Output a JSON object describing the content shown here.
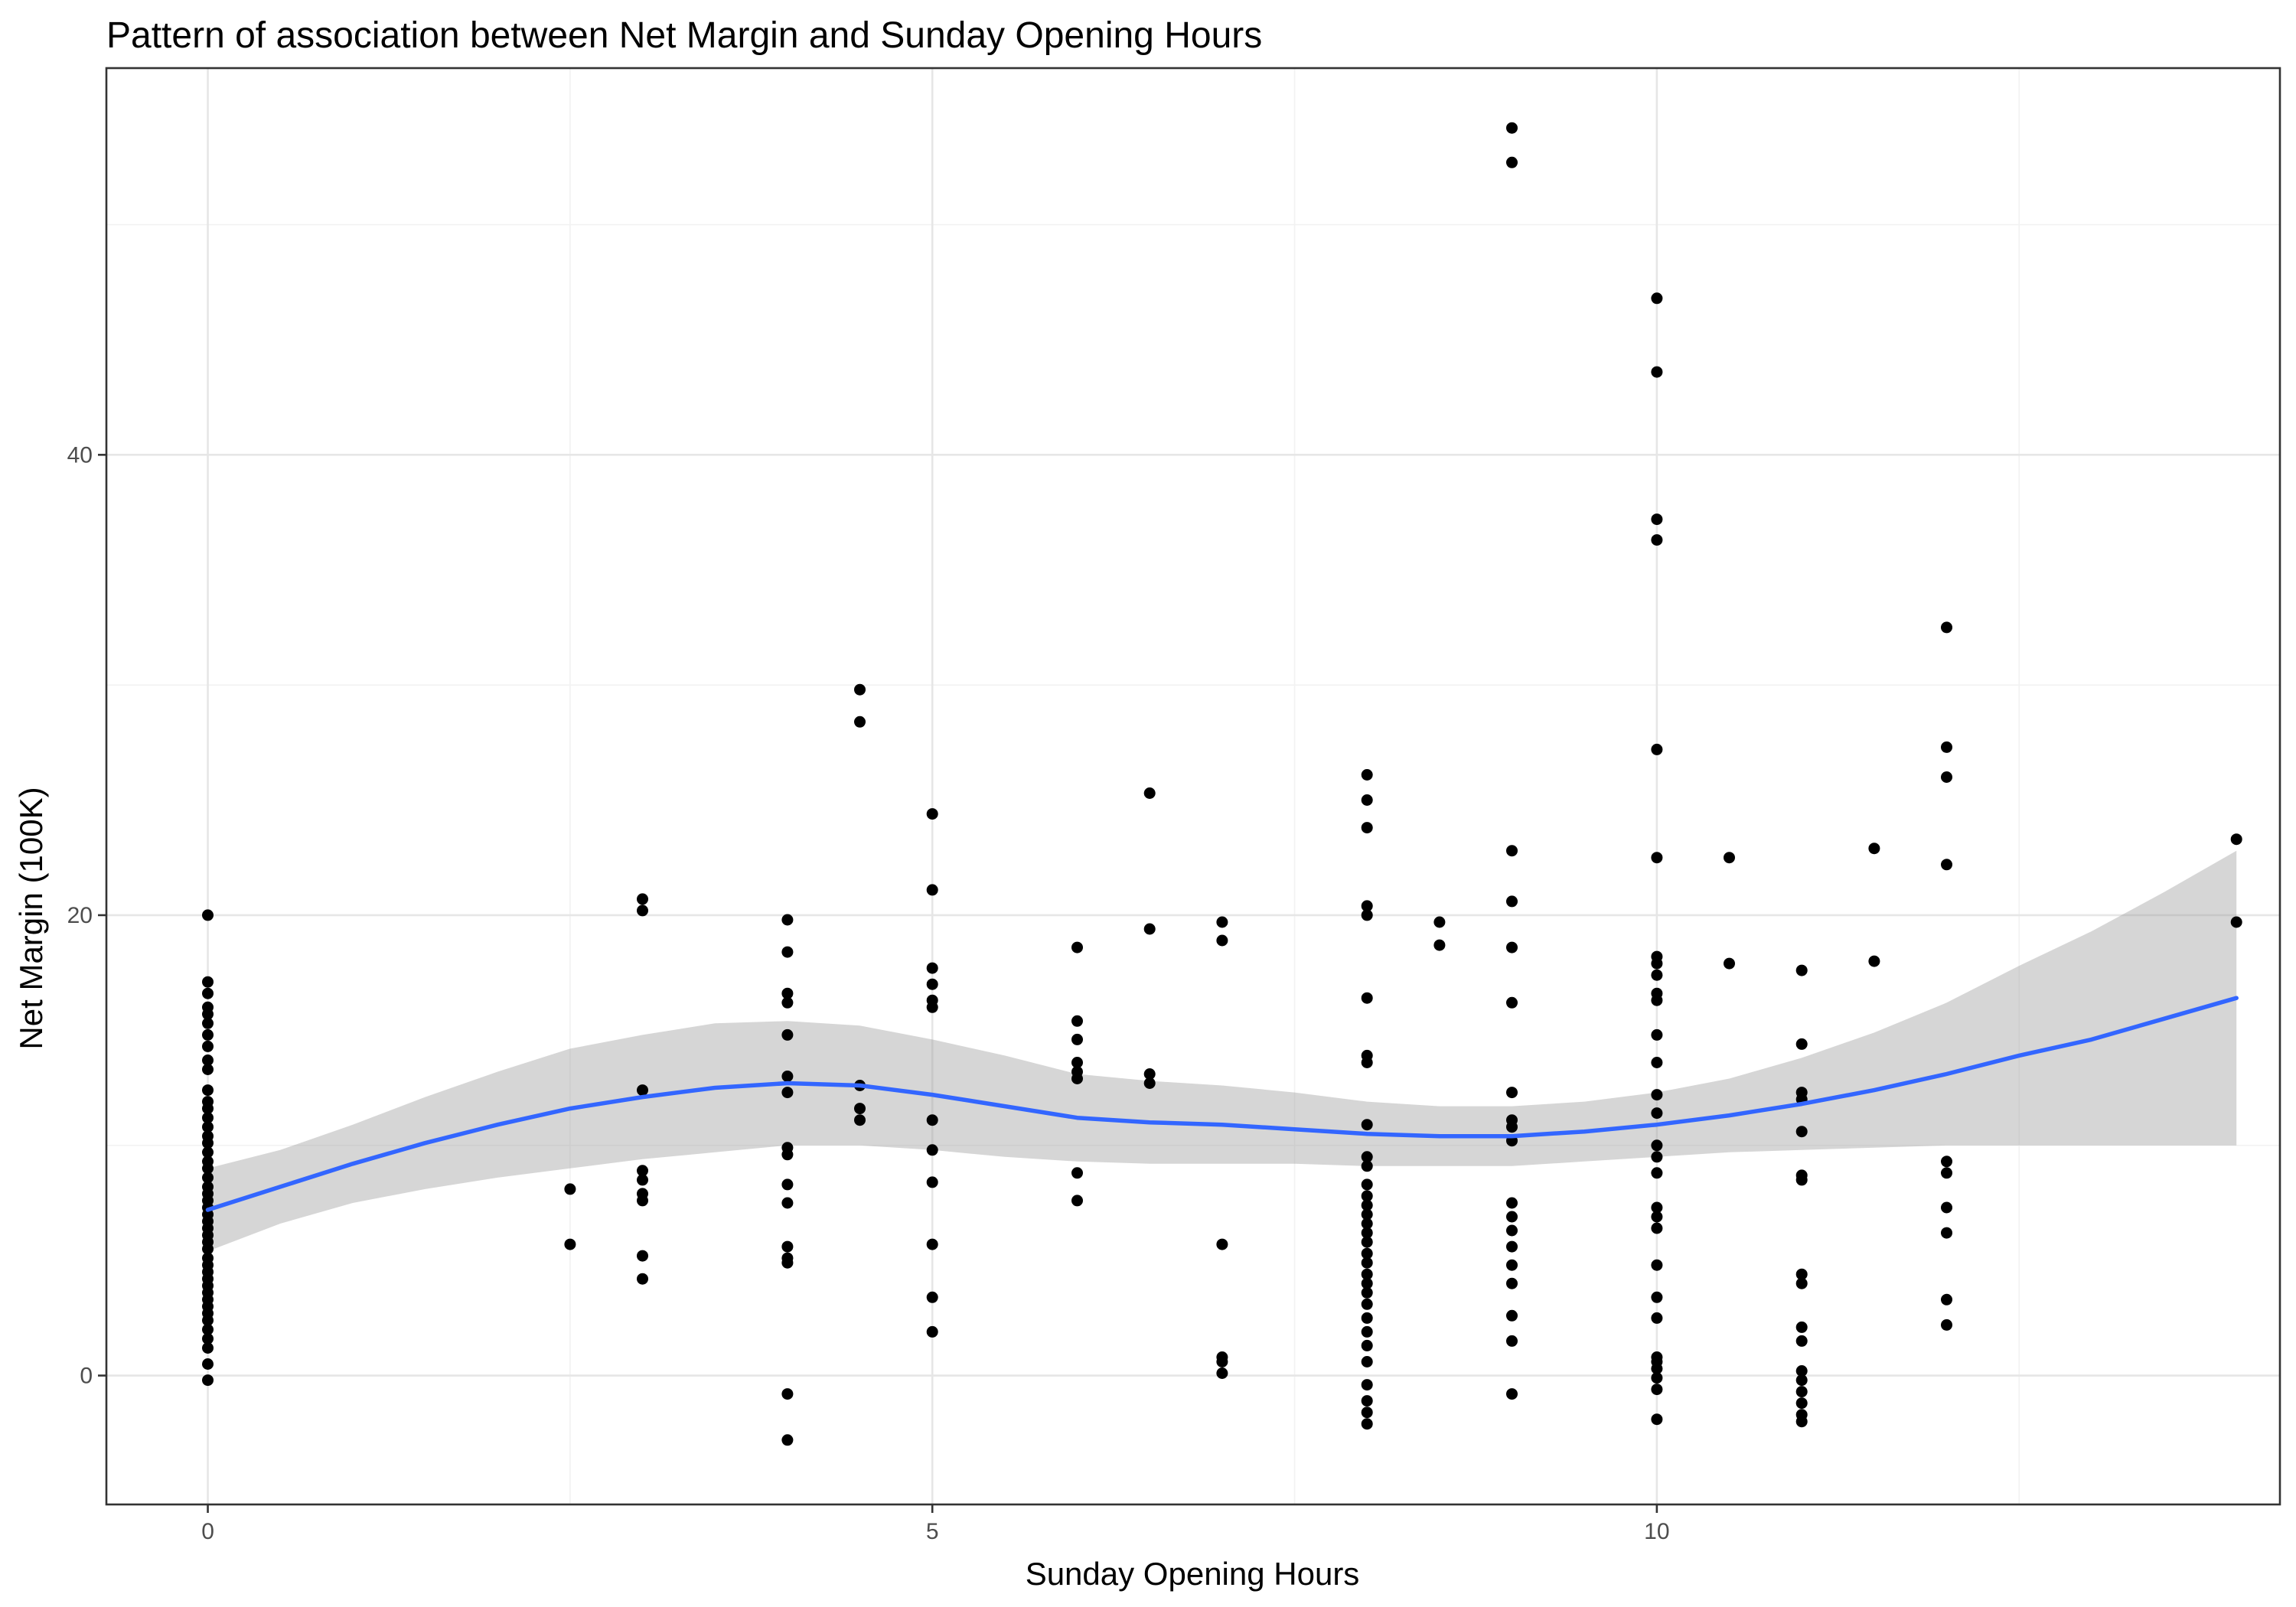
{
  "chart_data": {
    "type": "scatter",
    "title": "Pattern of association between Net Margin and Sunday Opening Hours",
    "xlabel": "Sunday Opening Hours",
    "ylabel": "Net Margin (100K)",
    "xlim": [
      -0.7,
      14.3
    ],
    "ylim": [
      -5.6,
      56.8
    ],
    "x_ticks": [
      0,
      5,
      10
    ],
    "y_ticks": [
      0,
      20,
      40
    ],
    "x_minor_ticks": [
      2.5,
      7.5,
      12.5
    ],
    "y_minor_ticks": [
      10,
      30,
      50
    ],
    "grid": true,
    "colors": {
      "points": "#000000",
      "smooth_line": "#3366ff",
      "confidence_band": "#999999"
    },
    "points": [
      [
        0,
        20.0
      ],
      [
        0,
        17.1
      ],
      [
        0,
        16.6
      ],
      [
        0,
        16.0
      ],
      [
        0,
        15.7
      ],
      [
        0,
        15.3
      ],
      [
        0,
        14.8
      ],
      [
        0,
        14.3
      ],
      [
        0,
        13.7
      ],
      [
        0,
        13.3
      ],
      [
        0,
        12.4
      ],
      [
        0,
        11.9
      ],
      [
        0,
        11.6
      ],
      [
        0,
        11.2
      ],
      [
        0,
        10.8
      ],
      [
        0,
        10.4
      ],
      [
        0,
        10.1
      ],
      [
        0,
        9.7
      ],
      [
        0,
        9.3
      ],
      [
        0,
        9.0
      ],
      [
        0,
        8.6
      ],
      [
        0,
        8.2
      ],
      [
        0,
        7.9
      ],
      [
        0,
        7.6
      ],
      [
        0,
        7.3
      ],
      [
        0,
        7.0
      ],
      [
        0,
        6.7
      ],
      [
        0,
        6.4
      ],
      [
        0,
        6.1
      ],
      [
        0,
        5.8
      ],
      [
        0,
        5.5
      ],
      [
        0,
        5.1
      ],
      [
        0,
        4.8
      ],
      [
        0,
        4.5
      ],
      [
        0,
        4.2
      ],
      [
        0,
        3.9
      ],
      [
        0,
        3.6
      ],
      [
        0,
        3.3
      ],
      [
        0,
        3.0
      ],
      [
        0,
        2.7
      ],
      [
        0,
        2.4
      ],
      [
        0,
        2.0
      ],
      [
        0,
        1.6
      ],
      [
        0,
        1.2
      ],
      [
        0,
        0.5
      ],
      [
        0,
        -0.2
      ],
      [
        2.5,
        8.1
      ],
      [
        2.5,
        5.7
      ],
      [
        3,
        20.7
      ],
      [
        3,
        20.2
      ],
      [
        3,
        12.4
      ],
      [
        3,
        8.9
      ],
      [
        3,
        8.5
      ],
      [
        3,
        7.9
      ],
      [
        3,
        7.6
      ],
      [
        3,
        5.2
      ],
      [
        3,
        4.2
      ],
      [
        4,
        19.8
      ],
      [
        4,
        18.4
      ],
      [
        4,
        16.6
      ],
      [
        4,
        16.2
      ],
      [
        4,
        14.8
      ],
      [
        4,
        13.0
      ],
      [
        4,
        12.3
      ],
      [
        4,
        9.9
      ],
      [
        4,
        9.6
      ],
      [
        4,
        8.3
      ],
      [
        4,
        7.5
      ],
      [
        4,
        5.6
      ],
      [
        4,
        5.1
      ],
      [
        4,
        4.9
      ],
      [
        4,
        -0.8
      ],
      [
        4,
        -2.8
      ],
      [
        4.5,
        29.8
      ],
      [
        4.5,
        28.4
      ],
      [
        4.5,
        12.6
      ],
      [
        4.5,
        11.6
      ],
      [
        4.5,
        11.1
      ],
      [
        5,
        24.4
      ],
      [
        5,
        21.1
      ],
      [
        5,
        17.7
      ],
      [
        5,
        17.0
      ],
      [
        5,
        16.3
      ],
      [
        5,
        16.0
      ],
      [
        5,
        11.1
      ],
      [
        5,
        9.8
      ],
      [
        5,
        8.4
      ],
      [
        5,
        5.7
      ],
      [
        5,
        3.4
      ],
      [
        5,
        1.9
      ],
      [
        6,
        18.6
      ],
      [
        6,
        15.4
      ],
      [
        6,
        14.6
      ],
      [
        6,
        13.6
      ],
      [
        6,
        13.2
      ],
      [
        6,
        12.9
      ],
      [
        6,
        8.8
      ],
      [
        6,
        7.6
      ],
      [
        6.5,
        25.3
      ],
      [
        6.5,
        19.4
      ],
      [
        6.5,
        13.1
      ],
      [
        6.5,
        12.7
      ],
      [
        7,
        19.7
      ],
      [
        7,
        18.9
      ],
      [
        7,
        5.7
      ],
      [
        7,
        0.8
      ],
      [
        7,
        0.6
      ],
      [
        7,
        0.1
      ],
      [
        8,
        26.1
      ],
      [
        8,
        25.0
      ],
      [
        8,
        23.8
      ],
      [
        8,
        20.4
      ],
      [
        8,
        20.0
      ],
      [
        8,
        16.4
      ],
      [
        8,
        13.9
      ],
      [
        8,
        13.6
      ],
      [
        8,
        10.9
      ],
      [
        8,
        9.5
      ],
      [
        8,
        9.1
      ],
      [
        8,
        8.3
      ],
      [
        8,
        7.8
      ],
      [
        8,
        7.4
      ],
      [
        8,
        7.0
      ],
      [
        8,
        6.6
      ],
      [
        8,
        6.2
      ],
      [
        8,
        5.8
      ],
      [
        8,
        5.3
      ],
      [
        8,
        4.9
      ],
      [
        8,
        4.4
      ],
      [
        8,
        4.0
      ],
      [
        8,
        3.6
      ],
      [
        8,
        3.1
      ],
      [
        8,
        2.5
      ],
      [
        8,
        1.9
      ],
      [
        8,
        1.3
      ],
      [
        8,
        0.6
      ],
      [
        8,
        -0.4
      ],
      [
        8,
        -1.1
      ],
      [
        8,
        -1.6
      ],
      [
        8,
        -2.1
      ],
      [
        8.5,
        19.7
      ],
      [
        8.5,
        18.7
      ],
      [
        9,
        54.2
      ],
      [
        9,
        52.7
      ],
      [
        9,
        22.8
      ],
      [
        9,
        20.6
      ],
      [
        9,
        18.6
      ],
      [
        9,
        16.2
      ],
      [
        9,
        12.3
      ],
      [
        9,
        11.1
      ],
      [
        9,
        10.8
      ],
      [
        9,
        10.2
      ],
      [
        9,
        7.5
      ],
      [
        9,
        6.9
      ],
      [
        9,
        6.3
      ],
      [
        9,
        5.6
      ],
      [
        9,
        4.8
      ],
      [
        9,
        4.0
      ],
      [
        9,
        2.6
      ],
      [
        9,
        1.5
      ],
      [
        9,
        -0.8
      ],
      [
        10,
        46.8
      ],
      [
        10,
        43.6
      ],
      [
        10,
        37.2
      ],
      [
        10,
        36.3
      ],
      [
        10,
        27.2
      ],
      [
        10,
        22.5
      ],
      [
        10,
        18.2
      ],
      [
        10,
        17.9
      ],
      [
        10,
        17.4
      ],
      [
        10,
        16.6
      ],
      [
        10,
        16.3
      ],
      [
        10,
        14.8
      ],
      [
        10,
        13.6
      ],
      [
        10,
        12.2
      ],
      [
        10,
        11.4
      ],
      [
        10,
        10.0
      ],
      [
        10,
        9.5
      ],
      [
        10,
        8.8
      ],
      [
        10,
        7.3
      ],
      [
        10,
        6.9
      ],
      [
        10,
        6.4
      ],
      [
        10,
        4.8
      ],
      [
        10,
        3.4
      ],
      [
        10,
        2.5
      ],
      [
        10,
        0.8
      ],
      [
        10,
        0.6
      ],
      [
        10,
        0.3
      ],
      [
        10,
        -0.1
      ],
      [
        10,
        -0.6
      ],
      [
        10,
        -1.9
      ],
      [
        10.5,
        22.5
      ],
      [
        10.5,
        17.9
      ],
      [
        11,
        17.6
      ],
      [
        11,
        14.4
      ],
      [
        11,
        12.3
      ],
      [
        11,
        12.0
      ],
      [
        11,
        10.6
      ],
      [
        11,
        8.7
      ],
      [
        11,
        8.5
      ],
      [
        11,
        4.4
      ],
      [
        11,
        4.0
      ],
      [
        11,
        2.1
      ],
      [
        11,
        1.5
      ],
      [
        11,
        0.2
      ],
      [
        11,
        -0.2
      ],
      [
        11,
        -0.7
      ],
      [
        11,
        -1.2
      ],
      [
        11,
        -1.7
      ],
      [
        11,
        -2.0
      ],
      [
        11.5,
        22.9
      ],
      [
        11.5,
        18.0
      ],
      [
        12,
        32.5
      ],
      [
        12,
        27.3
      ],
      [
        12,
        26.0
      ],
      [
        12,
        22.2
      ],
      [
        12,
        9.3
      ],
      [
        12,
        8.8
      ],
      [
        12,
        7.3
      ],
      [
        12,
        6.2
      ],
      [
        12,
        3.3
      ],
      [
        12,
        2.2
      ],
      [
        14,
        23.3
      ],
      [
        14,
        19.7
      ]
    ],
    "smooth": {
      "method": "loess",
      "x": [
        0,
        0.5,
        1,
        1.5,
        2,
        2.5,
        3,
        3.5,
        4,
        4.5,
        5,
        5.5,
        6,
        6.5,
        7,
        7.5,
        8,
        8.5,
        9,
        9.5,
        10,
        10.5,
        11,
        11.5,
        12,
        12.5,
        13,
        13.5,
        14
      ],
      "y": [
        7.2,
        8.2,
        9.2,
        10.1,
        10.9,
        11.6,
        12.1,
        12.5,
        12.7,
        12.6,
        12.2,
        11.7,
        11.2,
        11.0,
        10.9,
        10.7,
        10.5,
        10.4,
        10.4,
        10.6,
        10.9,
        11.3,
        11.8,
        12.4,
        13.1,
        13.9,
        14.6,
        15.5,
        16.4
      ],
      "lower": [
        5.4,
        6.6,
        7.5,
        8.1,
        8.6,
        9.0,
        9.4,
        9.7,
        10.0,
        10.0,
        9.8,
        9.5,
        9.3,
        9.2,
        9.2,
        9.2,
        9.1,
        9.1,
        9.1,
        9.3,
        9.5,
        9.7,
        9.8,
        9.9,
        10.0,
        10.0,
        10.0,
        10.0,
        10.0
      ],
      "upper": [
        9.0,
        9.8,
        10.9,
        12.1,
        13.2,
        14.2,
        14.8,
        15.3,
        15.4,
        15.2,
        14.6,
        13.9,
        13.1,
        12.8,
        12.6,
        12.3,
        11.9,
        11.7,
        11.7,
        11.9,
        12.3,
        12.9,
        13.8,
        14.9,
        16.2,
        17.8,
        19.3,
        21.0,
        22.8
      ]
    }
  }
}
